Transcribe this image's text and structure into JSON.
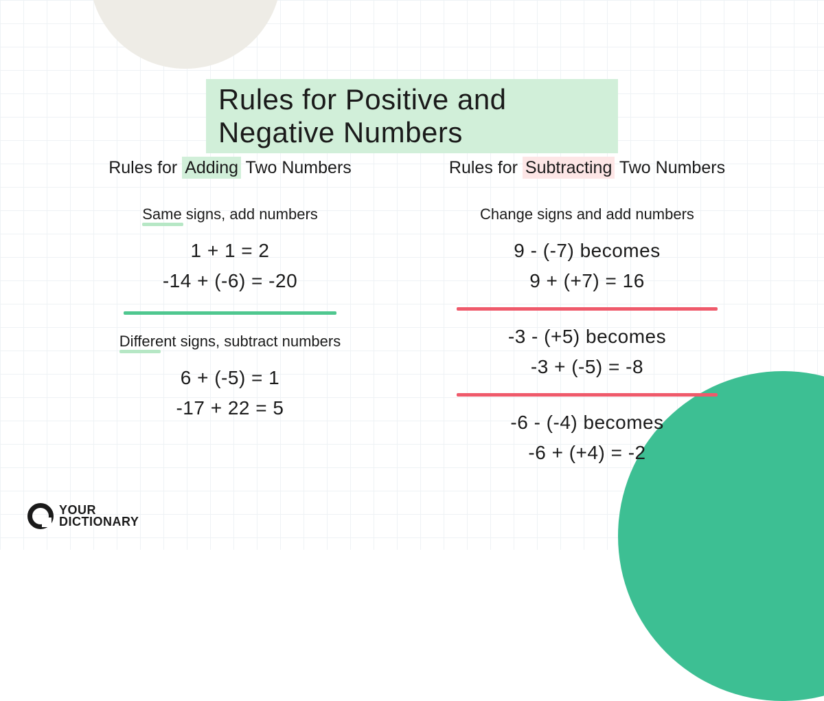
{
  "title": "Rules for Positive and Negative Numbers",
  "colors": {
    "title_highlight": "#d1efd9",
    "pink_highlight": "#fde6e6",
    "green_divider": "#4fc78f",
    "pink_divider": "#ef5a6b",
    "green_underline": "#b6e7c5",
    "shape_top": "#eeece6",
    "shape_bottom": "#3dbf93",
    "grid": "#eef2f5",
    "text": "#1a1a1a",
    "background": "#ffffff"
  },
  "left": {
    "heading_pre": "Rules for ",
    "heading_hl": "Adding",
    "heading_post": " Two Numbers",
    "rule1_label": "Same signs, add numbers",
    "rule1_ex1": "1 + 1 = 2",
    "rule1_ex2": "-14 + (-6) = -20",
    "rule2_label": "Different signs, subtract numbers",
    "rule2_ex1": "6 + (-5) = 1",
    "rule2_ex2": "-17 + 22 = 5"
  },
  "right": {
    "heading_pre": "Rules for ",
    "heading_hl": "Subtracting",
    "heading_post": " Two Numbers",
    "rule1_label": "Change signs and add numbers",
    "ex1a": "9 - (-7) becomes",
    "ex1b": "9 + (+7) = 16",
    "ex2a": "-3 - (+5) becomes",
    "ex2b": "-3 + (-5) = -8",
    "ex3a": "-6 - (-4) becomes",
    "ex3b": "-6 + (+4) = -2"
  },
  "logo": {
    "line1": "YOUR",
    "line2": "DICTIONARY"
  }
}
